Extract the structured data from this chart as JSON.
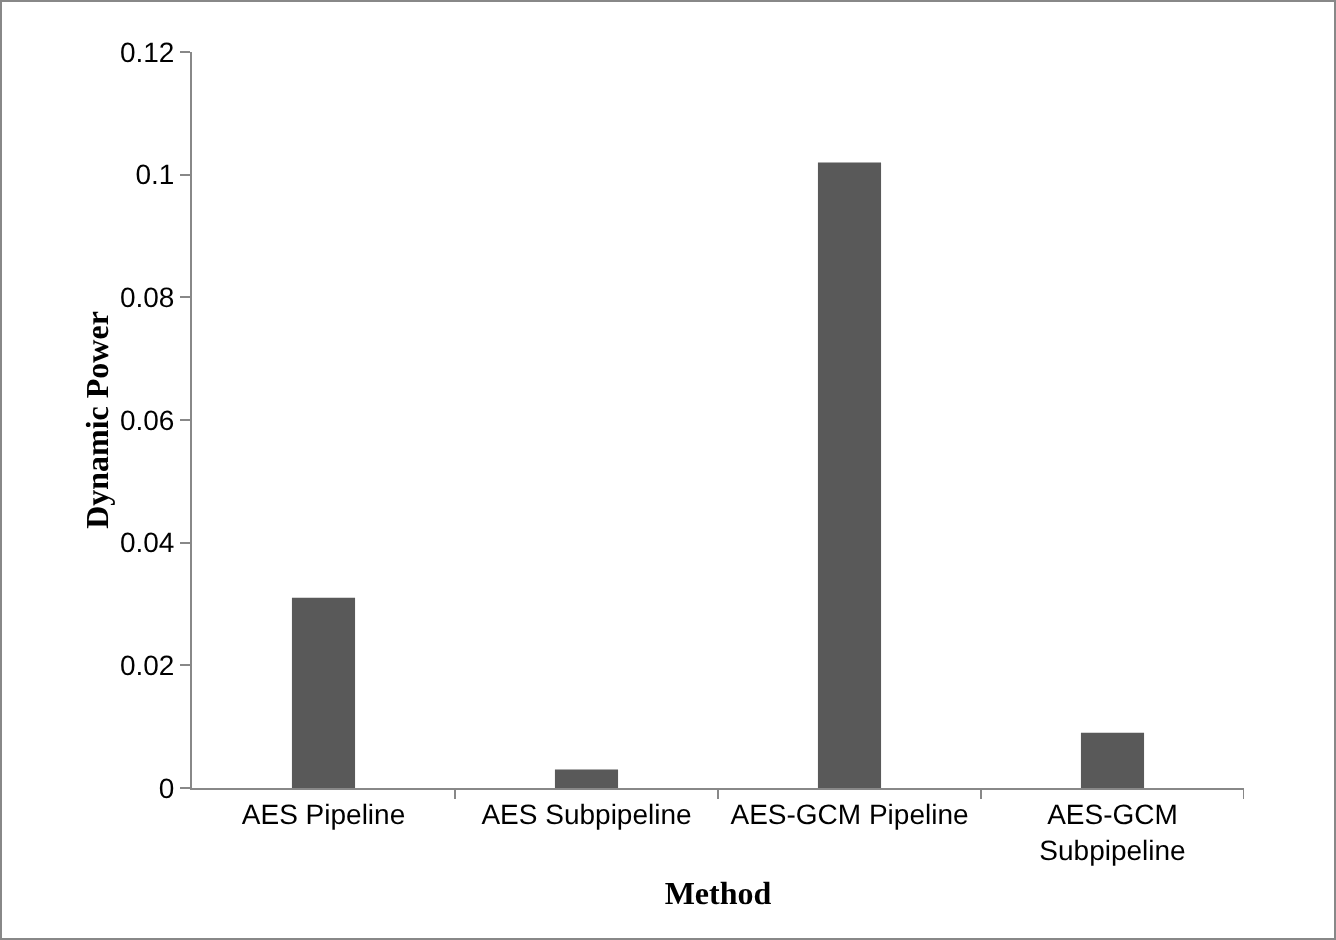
{
  "chart_data": {
    "type": "bar",
    "categories": [
      "AES Pipeline",
      "AES Subpipeline",
      "AES-GCM Pipeline",
      "AES-GCM\nSubpipeline"
    ],
    "values": [
      0.031,
      0.003,
      0.102,
      0.009
    ],
    "color": "#595959",
    "xlabel": "Method",
    "ylabel": "Dynamic Power",
    "ylim": [
      0,
      0.12
    ],
    "yticks": [
      0,
      0.02,
      0.04,
      0.06,
      0.08,
      0.1,
      0.12
    ],
    "grid": false,
    "legend": false
  }
}
